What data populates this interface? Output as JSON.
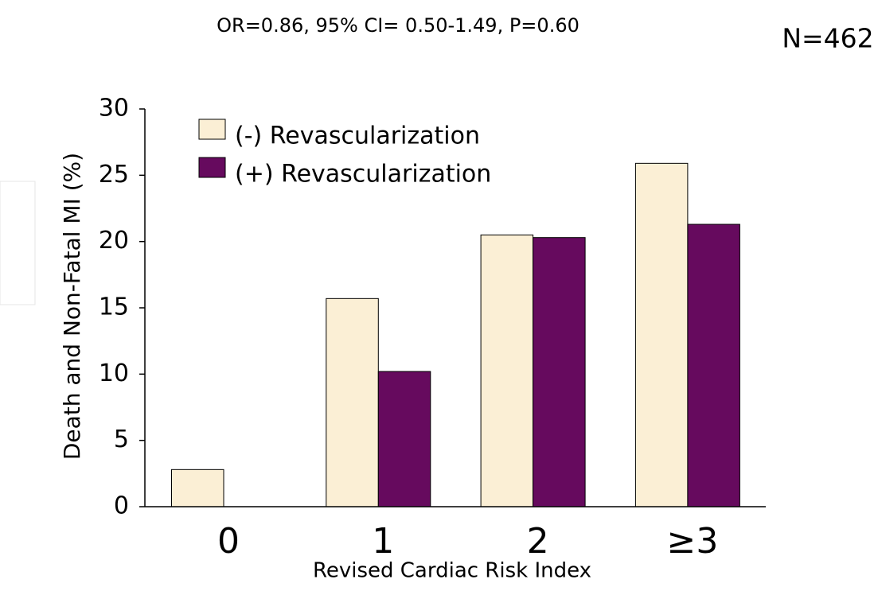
{
  "chart_data": {
    "type": "bar",
    "title": "OR=0.86, 95% CI= 0.50-1.49, P=0.60",
    "subtitle": "N=462",
    "x_label": "Revised Cardiac Risk Index",
    "y_label": "Death and Non-Fatal MI (%)",
    "categories": [
      "0",
      "1",
      "2",
      "≥3"
    ],
    "series": [
      {
        "name": "(-) Revascularization",
        "color": "#fbefd5",
        "values": [
          2.8,
          15.7,
          20.5,
          25.9
        ]
      },
      {
        "name": "(+) Revascularization",
        "color": "#660a5e",
        "values": [
          0,
          10.2,
          20.3,
          21.3
        ]
      }
    ],
    "ylim": [
      0,
      30
    ],
    "yticks": [
      0,
      5,
      10,
      15,
      20,
      25,
      30
    ],
    "legend": "upper left"
  }
}
